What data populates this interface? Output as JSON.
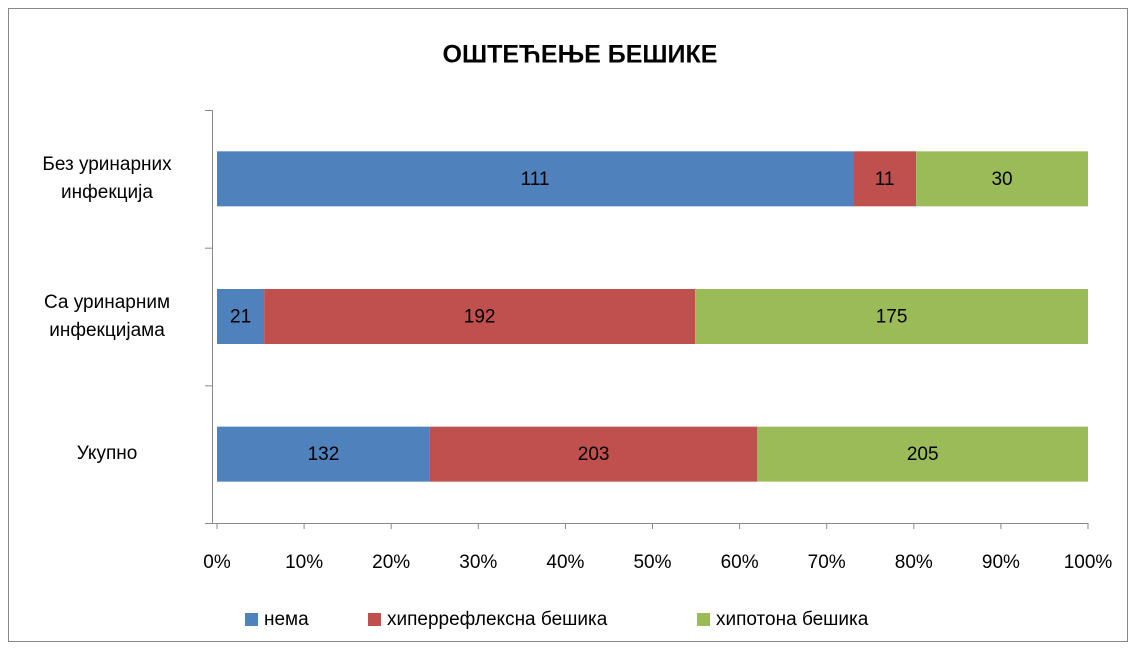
{
  "chart_data": {
    "type": "bar",
    "orientation": "horizontal",
    "stacking": "percent",
    "title": "ОШТЕЋЕЊЕ БЕШИКЕ",
    "categories": [
      "Без уринарних инфекција",
      "Са уринарним инфекцијама",
      "Укупно"
    ],
    "series": [
      {
        "name": "нема",
        "color": "#4f81bd",
        "values": [
          111,
          21,
          132
        ]
      },
      {
        "name": "хиперрефлексна бешика",
        "color": "#c0504d",
        "values": [
          11,
          192,
          203
        ]
      },
      {
        "name": "хипотона бешика",
        "color": "#9bbb59",
        "values": [
          30,
          175,
          205
        ]
      }
    ],
    "xlim": [
      0,
      100
    ],
    "xticks": [
      {
        "value": 0,
        "label": "0%"
      },
      {
        "value": 10,
        "label": "10%"
      },
      {
        "value": 20,
        "label": "20%"
      },
      {
        "value": 30,
        "label": "30%"
      },
      {
        "value": 40,
        "label": "40%"
      },
      {
        "value": 50,
        "label": "50%"
      },
      {
        "value": 60,
        "label": "60%"
      },
      {
        "value": 70,
        "label": "70%"
      },
      {
        "value": 80,
        "label": "80%"
      },
      {
        "value": 90,
        "label": "90%"
      },
      {
        "value": 100,
        "label": "100%"
      }
    ],
    "legend": "bottom"
  }
}
